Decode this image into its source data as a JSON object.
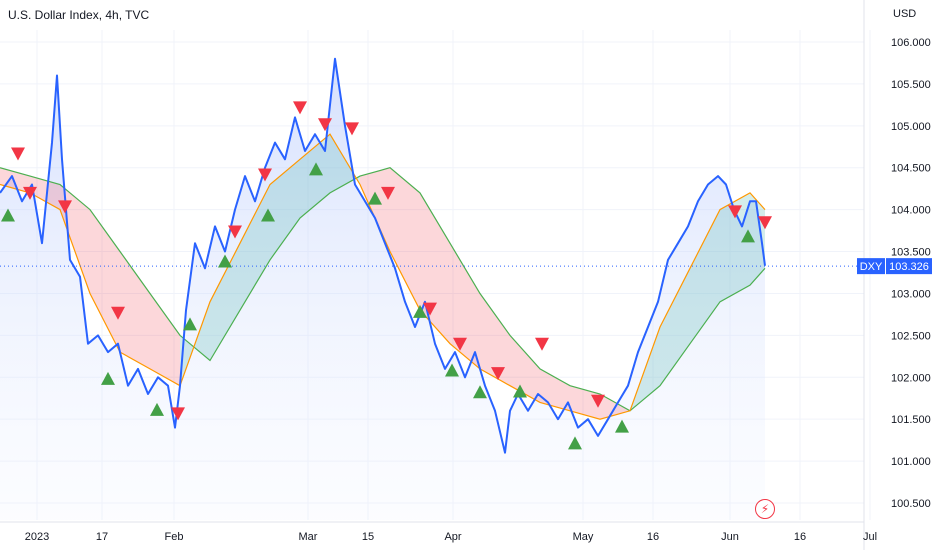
{
  "title": "U.S. Dollar Index, 4h, TVC",
  "currency": "USD",
  "last_price": {
    "symbol": "DXY",
    "value": "103.326"
  },
  "colors": {
    "price_line": "#2962ff",
    "fast_ma": "#ff9800",
    "slow_ma": "#4caf50",
    "cloud_bear": "#f23645",
    "cloud_bull": "#26a69a",
    "buy_marker": "#43a047",
    "sell_marker": "#f23645",
    "price_fill": "#e9efff",
    "axis_text": "#131722"
  },
  "chart_data": {
    "type": "line",
    "ylim": [
      100.4,
      106.2
    ],
    "y_ticks": [
      "106.000",
      "105.500",
      "105.000",
      "104.500",
      "104.000",
      "103.500",
      "103.000",
      "102.500",
      "102.000",
      "101.500",
      "101.000",
      "100.500"
    ],
    "x_ticks": [
      "2023",
      "17",
      "Feb",
      "Mar",
      "15",
      "Apr",
      "May",
      "16",
      "Jun",
      "16",
      "Jul"
    ],
    "x_tick_index": [
      37,
      102,
      174,
      308,
      368,
      453,
      583,
      653,
      730,
      800,
      870
    ],
    "x_span": 932,
    "series": [
      {
        "x": [
          0,
          12,
          22,
          32,
          42,
          52,
          57,
          62,
          70,
          80,
          88,
          98,
          108,
          118,
          128,
          138,
          148,
          158,
          168,
          175,
          180,
          186,
          195,
          205,
          215,
          225,
          235,
          245,
          255,
          265,
          275,
          285,
          295,
          305,
          315,
          325,
          335,
          345,
          355,
          365,
          375,
          385,
          395,
          405,
          415,
          425,
          435,
          445,
          455,
          465,
          475,
          485,
          495,
          505,
          510,
          518,
          528,
          538,
          548,
          558,
          568,
          578,
          588,
          598,
          608,
          618,
          628,
          638,
          648,
          658,
          668,
          678,
          688,
          698,
          708,
          718,
          726,
          734,
          742,
          750,
          756,
          762,
          765
        ],
        "values": [
          104.2,
          104.4,
          104.1,
          104.3,
          103.6,
          104.8,
          105.6,
          104.6,
          103.4,
          103.2,
          102.4,
          102.5,
          102.3,
          102.4,
          101.9,
          102.1,
          101.8,
          102.0,
          101.9,
          101.4,
          101.9,
          102.8,
          103.6,
          103.3,
          103.8,
          103.5,
          104.0,
          104.4,
          104.1,
          104.5,
          104.8,
          104.6,
          105.1,
          104.7,
          104.9,
          104.7,
          105.8,
          105.0,
          104.3,
          104.1,
          103.9,
          103.6,
          103.3,
          102.9,
          102.6,
          102.9,
          102.4,
          102.1,
          102.3,
          102.0,
          102.3,
          101.9,
          101.6,
          101.1,
          101.6,
          101.8,
          101.6,
          101.8,
          101.7,
          101.5,
          101.7,
          101.4,
          101.5,
          101.3,
          101.5,
          101.7,
          101.9,
          102.3,
          102.6,
          102.9,
          103.4,
          103.6,
          103.8,
          104.1,
          104.3,
          104.4,
          104.3,
          104.0,
          103.8,
          104.1,
          104.1,
          103.6,
          103.33
        ]
      },
      {
        "x": [
          0,
          30,
          60,
          90,
          120,
          150,
          180,
          210,
          240,
          270,
          300,
          330,
          360,
          390,
          420,
          450,
          480,
          510,
          540,
          570,
          600,
          630,
          660,
          690,
          720,
          750,
          765
        ],
        "values": [
          104.3,
          104.2,
          104.0,
          103.0,
          102.3,
          102.1,
          101.9,
          102.9,
          103.6,
          104.3,
          104.6,
          104.9,
          104.3,
          103.5,
          102.8,
          102.4,
          102.1,
          101.9,
          101.7,
          101.6,
          101.5,
          101.6,
          102.6,
          103.3,
          104.0,
          104.2,
          104.0
        ]
      },
      {
        "x": [
          0,
          30,
          60,
          90,
          120,
          150,
          180,
          210,
          240,
          270,
          300,
          330,
          360,
          390,
          420,
          450,
          480,
          510,
          540,
          570,
          600,
          630,
          660,
          690,
          720,
          750,
          765
        ],
        "values": [
          104.5,
          104.4,
          104.3,
          104.0,
          103.5,
          103.0,
          102.5,
          102.2,
          102.8,
          103.4,
          103.9,
          104.2,
          104.4,
          104.5,
          104.2,
          103.6,
          103.0,
          102.5,
          102.1,
          101.9,
          101.8,
          101.6,
          101.9,
          102.4,
          102.9,
          103.1,
          103.3
        ]
      }
    ],
    "buy_markers": {
      "x": [
        8,
        108,
        157,
        190,
        225,
        268,
        316,
        375,
        420,
        452,
        480,
        520,
        575,
        622,
        748
      ],
      "y": [
        104.05,
        102.1,
        101.73,
        102.75,
        103.5,
        104.05,
        104.6,
        104.25,
        102.9,
        102.2,
        101.94,
        101.95,
        101.33,
        101.53,
        103.8
      ]
    },
    "sell_markers": {
      "x": [
        18,
        30,
        65,
        118,
        178,
        235,
        265,
        300,
        325,
        352,
        388,
        430,
        460,
        498,
        542,
        598,
        735,
        765
      ],
      "y": [
        104.55,
        104.08,
        103.92,
        102.65,
        101.45,
        103.62,
        104.3,
        105.1,
        104.9,
        104.85,
        104.08,
        102.7,
        102.28,
        101.93,
        102.28,
        101.6,
        103.86,
        103.73
      ]
    }
  }
}
